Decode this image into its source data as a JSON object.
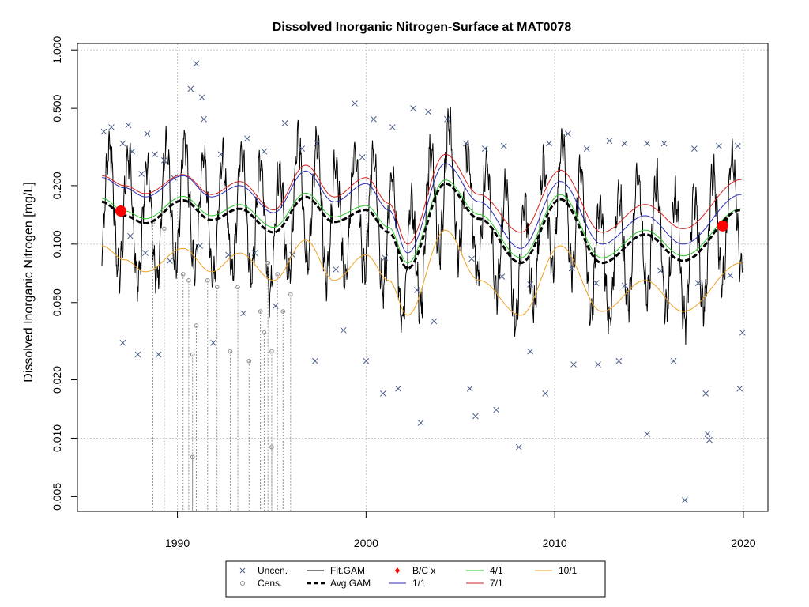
{
  "chart_data": {
    "type": "line",
    "title": "Dissolved Inorganic Nitrogen-Surface at MAT0078",
    "xlabel": "",
    "ylabel": "Dissolved Inorganic Nitrogen [mg/L]",
    "y_scale": "log",
    "xlim": [
      1984.7,
      2021.3
    ],
    "ylim": [
      0.0042,
      1.08
    ],
    "x_ticks": [
      1990,
      2000,
      2010,
      2020
    ],
    "x_tick_labels": [
      "1990",
      "2000",
      "2010",
      "2020"
    ],
    "y_ticks": [
      0.005,
      0.01,
      0.02,
      0.05,
      0.1,
      0.2,
      0.5,
      1.0
    ],
    "y_tick_labels": [
      "0.005",
      "0.010",
      "0.020",
      "0.050",
      "0.100",
      "0.200",
      "0.500",
      "1.000"
    ],
    "grid": true,
    "legend_placement": "bottom",
    "legend": [
      {
        "label": "Uncen.",
        "symbol": "x",
        "color": "#4a5d8a"
      },
      {
        "label": "Cens.",
        "symbol": "circle",
        "color": "#8c8c8c"
      },
      {
        "label": "Fit.GAM",
        "symbol": "line",
        "color": "#000000"
      },
      {
        "label": "Avg.GAM",
        "symbol": "dashed",
        "color": "#000000"
      },
      {
        "label": "B/C x",
        "symbol": "diamond",
        "color": "#ff0000"
      },
      {
        "label": "1/1",
        "symbol": "line",
        "color": "#2b2bb5"
      },
      {
        "label": "4/1",
        "symbol": "line",
        "color": "#28c728"
      },
      {
        "label": "7/1",
        "symbol": "line",
        "color": "#d62020"
      },
      {
        "label": "10/1",
        "symbol": "line",
        "color": "#f0a020"
      }
    ],
    "series": [
      {
        "name": "Avg.GAM",
        "x": [
          1986,
          1987.2,
          1988.3,
          1990.3,
          1991.8,
          1993.3,
          1995.1,
          1996.8,
          1998.3,
          2000,
          2001.2,
          2002.2,
          2004.2,
          2006,
          2008.2,
          2010.3,
          2012.5,
          2014.8,
          2016.8,
          2019.9
        ],
        "values": [
          0.165,
          0.14,
          0.128,
          0.168,
          0.133,
          0.152,
          0.115,
          0.175,
          0.13,
          0.15,
          0.115,
          0.075,
          0.205,
          0.135,
          0.08,
          0.17,
          0.08,
          0.112,
          0.082,
          0.15
        ]
      },
      {
        "name": "1/1",
        "x": [
          1986,
          1987.2,
          1988.3,
          1990.3,
          1991.8,
          1993.3,
          1995.1,
          1996.8,
          1998.3,
          2000,
          2001.2,
          2002.2,
          2004.2,
          2006,
          2008.2,
          2010.3,
          2012.5,
          2014.8,
          2016.8,
          2019.9
        ],
        "values": [
          0.22,
          0.195,
          0.175,
          0.225,
          0.175,
          0.2,
          0.145,
          0.238,
          0.165,
          0.205,
          0.15,
          0.09,
          0.26,
          0.165,
          0.095,
          0.21,
          0.1,
          0.14,
          0.1,
          0.18
        ]
      },
      {
        "name": "4/1",
        "x": [
          1986,
          1987.2,
          1988.3,
          1990.3,
          1991.8,
          1993.3,
          1995.1,
          1996.8,
          1998.3,
          2000,
          2001.2,
          2002.2,
          2004.2,
          2006,
          2008.2,
          2010.3,
          2012.5,
          2014.8,
          2016.8,
          2019.9
        ],
        "values": [
          0.172,
          0.148,
          0.135,
          0.176,
          0.14,
          0.16,
          0.122,
          0.183,
          0.138,
          0.158,
          0.122,
          0.08,
          0.214,
          0.142,
          0.085,
          0.18,
          0.085,
          0.118,
          0.087,
          0.152
        ]
      },
      {
        "name": "7/1",
        "x": [
          1986,
          1987.2,
          1988.3,
          1990.3,
          1991.8,
          1993.3,
          1995.1,
          1996.8,
          1998.3,
          2000,
          2001.2,
          2002.2,
          2004.2,
          2006,
          2008.2,
          2010.3,
          2012.5,
          2014.8,
          2016.8,
          2019.9
        ],
        "values": [
          0.225,
          0.2,
          0.182,
          0.228,
          0.18,
          0.21,
          0.15,
          0.255,
          0.175,
          0.22,
          0.162,
          0.1,
          0.29,
          0.18,
          0.115,
          0.24,
          0.115,
          0.16,
          0.12,
          0.215
        ]
      },
      {
        "name": "10/1",
        "x": [
          1986,
          1987.2,
          1988.3,
          1990.3,
          1991.8,
          1993.3,
          1995.1,
          1996.8,
          1998.3,
          2000,
          2001.2,
          2002.2,
          2004.2,
          2006,
          2008.2,
          2010.3,
          2012.5,
          2014.8,
          2016.8,
          2019.9
        ],
        "values": [
          0.098,
          0.083,
          0.072,
          0.095,
          0.072,
          0.09,
          0.065,
          0.105,
          0.065,
          0.088,
          0.065,
          0.043,
          0.118,
          0.065,
          0.043,
          0.098,
          0.045,
          0.065,
          0.045,
          0.08
        ]
      },
      {
        "name": "B/C x",
        "x": [
          1987,
          2018.9
        ],
        "values": [
          0.148,
          0.124
        ]
      }
    ],
    "fit_gam_seed": 7,
    "uncensored_points": [
      [
        1986.1,
        0.38
      ],
      [
        1986.5,
        0.4
      ],
      [
        1987.1,
        0.33
      ],
      [
        1987.4,
        0.41
      ],
      [
        1987.6,
        0.3
      ],
      [
        1988.1,
        0.23
      ],
      [
        1988.4,
        0.37
      ],
      [
        1988.8,
        0.29
      ],
      [
        1989.3,
        0.27
      ],
      [
        1989.8,
        0.22
      ],
      [
        1990.7,
        0.63
      ],
      [
        1991.0,
        0.85
      ],
      [
        1991.3,
        0.57
      ],
      [
        1991.4,
        0.44
      ],
      [
        1992.3,
        0.29
      ],
      [
        1993.7,
        0.35
      ],
      [
        1994.6,
        0.3
      ],
      [
        1995.7,
        0.42
      ],
      [
        1996.6,
        0.31
      ],
      [
        1997.4,
        0.33
      ],
      [
        1999.4,
        0.53
      ],
      [
        1999.8,
        0.28
      ],
      [
        2000.4,
        0.44
      ],
      [
        2001.4,
        0.4
      ],
      [
        2002.5,
        0.5
      ],
      [
        2003.3,
        0.48
      ],
      [
        2004.3,
        0.44
      ],
      [
        2005.3,
        0.33
      ],
      [
        2006.3,
        0.31
      ],
      [
        2007.3,
        0.32
      ],
      [
        2009.7,
        0.33
      ],
      [
        2010.7,
        0.37
      ],
      [
        2011.7,
        0.31
      ],
      [
        2012.9,
        0.34
      ],
      [
        2013.7,
        0.33
      ],
      [
        2014.9,
        0.33
      ],
      [
        2015.8,
        0.33
      ],
      [
        2017.4,
        0.31
      ],
      [
        2018.7,
        0.32
      ],
      [
        2019.7,
        0.32
      ],
      [
        1987.5,
        0.11
      ],
      [
        1988.3,
        0.09
      ],
      [
        1989.6,
        0.082
      ],
      [
        1991.2,
        0.098
      ],
      [
        1992.7,
        0.088
      ],
      [
        1994.1,
        0.09
      ],
      [
        1996.1,
        0.088
      ],
      [
        1998.4,
        0.074
      ],
      [
        2001.0,
        0.085
      ],
      [
        2002.7,
        0.058
      ],
      [
        2005.6,
        0.084
      ],
      [
        2007.2,
        0.068
      ],
      [
        2008.7,
        0.062
      ],
      [
        2010.9,
        0.075
      ],
      [
        2012.2,
        0.063
      ],
      [
        2013.7,
        0.061
      ],
      [
        2015.6,
        0.073
      ],
      [
        2017.6,
        0.063
      ],
      [
        2019.3,
        0.069
      ],
      [
        1987.1,
        0.031
      ],
      [
        1987.9,
        0.027
      ],
      [
        1989.0,
        0.027
      ],
      [
        1991.9,
        0.031
      ],
      [
        1993.5,
        0.044
      ],
      [
        1995.2,
        0.048
      ],
      [
        1997.3,
        0.025
      ],
      [
        1998.8,
        0.036
      ],
      [
        2000.0,
        0.025
      ],
      [
        2000.9,
        0.017
      ],
      [
        2001.7,
        0.018
      ],
      [
        2002.9,
        0.012
      ],
      [
        2003.6,
        0.04
      ],
      [
        2005.5,
        0.018
      ],
      [
        2005.8,
        0.013
      ],
      [
        2006.9,
        0.014
      ],
      [
        2008.1,
        0.009
      ],
      [
        2008.7,
        0.028
      ],
      [
        2009.5,
        0.017
      ],
      [
        2011.0,
        0.024
      ],
      [
        2012.3,
        0.024
      ],
      [
        2013.4,
        0.025
      ],
      [
        2014.9,
        0.0105
      ],
      [
        2016.3,
        0.025
      ],
      [
        2016.9,
        0.0048
      ],
      [
        2018.0,
        0.017
      ],
      [
        2018.1,
        0.0105
      ],
      [
        2018.2,
        0.0098
      ],
      [
        2019.8,
        0.018
      ],
      [
        2019.95,
        0.035
      ]
    ],
    "censored_points": [
      [
        1988.7,
        0.13
      ],
      [
        1989.3,
        0.12
      ],
      [
        1990.3,
        0.07
      ],
      [
        1990.6,
        0.065
      ],
      [
        1990.8,
        0.027
      ],
      [
        1990.8,
        0.008
      ],
      [
        1991.0,
        0.038
      ],
      [
        1991.6,
        0.065
      ],
      [
        1992.1,
        0.06
      ],
      [
        1992.8,
        0.028
      ],
      [
        1993.2,
        0.06
      ],
      [
        1993.8,
        0.025
      ],
      [
        1994.4,
        0.045
      ],
      [
        1994.6,
        0.035
      ],
      [
        1995.0,
        0.028
      ],
      [
        1995.0,
        0.009
      ],
      [
        1995.6,
        0.045
      ],
      [
        1996.0,
        0.055
      ],
      [
        1994.8,
        0.08
      ],
      [
        1995.3,
        0.07
      ]
    ]
  }
}
